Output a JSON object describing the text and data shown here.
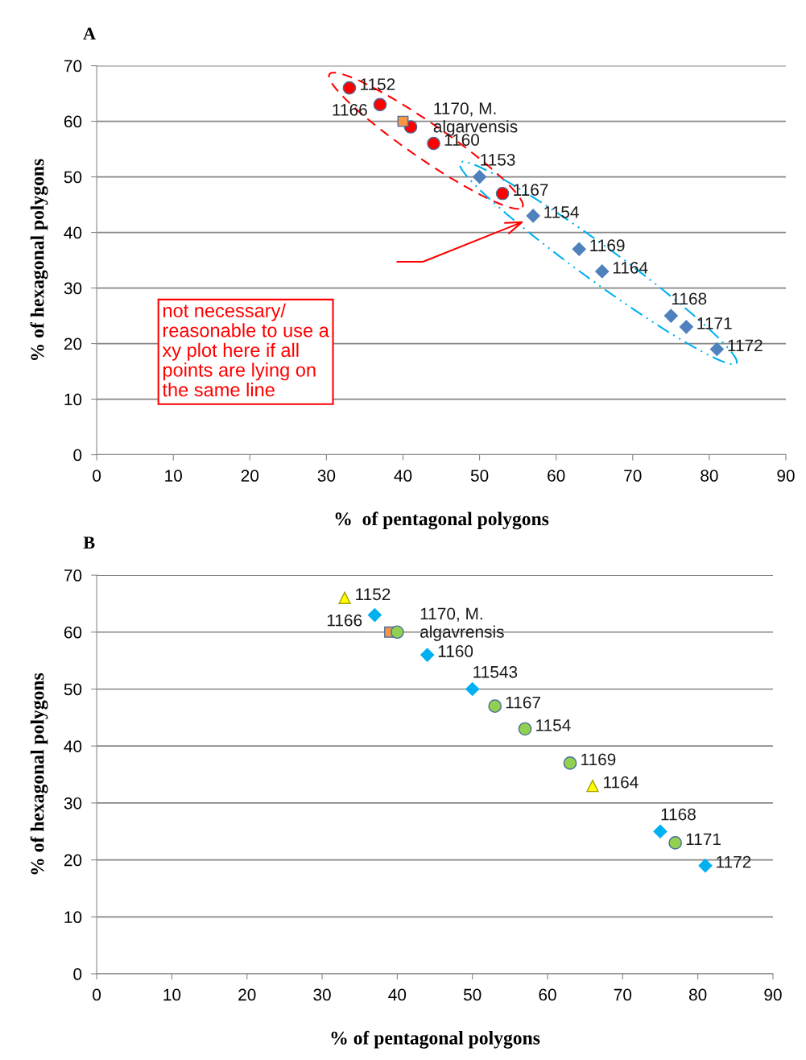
{
  "chart_data": [
    {
      "type": "scatter",
      "title": "A",
      "xlabel": "%  of pentagonal polygons",
      "ylabel": "% of hexagonal polygons",
      "xlim": [
        0,
        90
      ],
      "xticks": [
        0,
        10,
        20,
        30,
        40,
        50,
        60,
        70,
        80,
        90
      ],
      "ylim": [
        0,
        70
      ],
      "yticks": [
        0,
        10,
        20,
        30,
        40,
        50,
        60,
        70
      ],
      "grid": "y",
      "legend": false,
      "series": [
        {
          "color": "#ff0000",
          "marker": "circle",
          "x": [
            33,
            37,
            41,
            44,
            53
          ],
          "values": [
            66,
            63,
            59,
            56,
            47
          ]
        },
        {
          "color": "#f79646",
          "marker": "square",
          "x": [
            40
          ],
          "values": [
            60
          ]
        },
        {
          "color": "#4f81bd",
          "marker": "diamond",
          "x": [
            50,
            57,
            63,
            66,
            75,
            77,
            81
          ],
          "values": [
            50,
            43,
            37,
            33,
            25,
            23,
            19
          ]
        }
      ],
      "annotations": [
        {
          "text": "1152",
          "x": 33,
          "y": 66
        },
        {
          "text": "1166",
          "x": 37,
          "y": 63
        },
        {
          "text": "1170, M.\nalgarvensis",
          "x": 41,
          "y": 59
        },
        {
          "text": "1160",
          "x": 44,
          "y": 56
        },
        {
          "text": "1153",
          "x": 50,
          "y": 50
        },
        {
          "text": "1167",
          "x": 53,
          "y": 47
        },
        {
          "text": "1154",
          "x": 57,
          "y": 43
        },
        {
          "text": "1169",
          "x": 63,
          "y": 37
        },
        {
          "text": "1164",
          "x": 66,
          "y": 33
        },
        {
          "text": "1168",
          "x": 75,
          "y": 25
        },
        {
          "text": "1171",
          "x": 77,
          "y": 23
        },
        {
          "text": "1172",
          "x": 81,
          "y": 19
        },
        "not necessary/\nreasonable to use a\nxy plot here if all\npoints are lying on\nthe same line"
      ]
    },
    {
      "type": "scatter",
      "title": "B",
      "xlabel": "% of pentagonal polygons",
      "ylabel": "% of hexagonal polygons",
      "xlim": [
        0,
        90
      ],
      "xticks": [
        0,
        10,
        20,
        30,
        40,
        50,
        60,
        70,
        80,
        90
      ],
      "ylim": [
        0,
        70
      ],
      "yticks": [
        0,
        10,
        20,
        30,
        40,
        50,
        60,
        70
      ],
      "grid": "y",
      "legend": false,
      "series": [
        {
          "color": "#ffff00",
          "marker": "triangle",
          "x": [
            33,
            66
          ],
          "values": [
            66,
            33
          ]
        },
        {
          "color": "#00b0f0",
          "marker": "diamond",
          "x": [
            37,
            44,
            50,
            75,
            81
          ],
          "values": [
            63,
            56,
            50,
            25,
            19
          ]
        },
        {
          "color": "#f79646",
          "marker": "square",
          "x": [
            39
          ],
          "values": [
            60
          ]
        },
        {
          "color": "#92d050",
          "marker": "circle",
          "x": [
            40,
            53,
            57,
            63,
            77
          ],
          "values": [
            60,
            47,
            43,
            37,
            23
          ]
        }
      ],
      "annotations": [
        {
          "text": "1152",
          "x": 33,
          "y": 66
        },
        {
          "text": "1166",
          "x": 37,
          "y": 63
        },
        {
          "text": "1170, M.\nalgavrensis",
          "x": 40,
          "y": 60
        },
        {
          "text": "1160",
          "x": 44,
          "y": 56
        },
        {
          "text": "11543",
          "x": 50,
          "y": 50
        },
        {
          "text": "1167",
          "x": 53,
          "y": 47
        },
        {
          "text": "1154",
          "x": 57,
          "y": 43
        },
        {
          "text": "1169",
          "x": 63,
          "y": 37
        },
        {
          "text": "1164",
          "x": 66,
          "y": 33
        },
        {
          "text": "1168",
          "x": 75,
          "y": 25
        },
        {
          "text": "1171",
          "x": 77,
          "y": 23
        },
        {
          "text": "1172",
          "x": 81,
          "y": 19
        }
      ]
    }
  ]
}
